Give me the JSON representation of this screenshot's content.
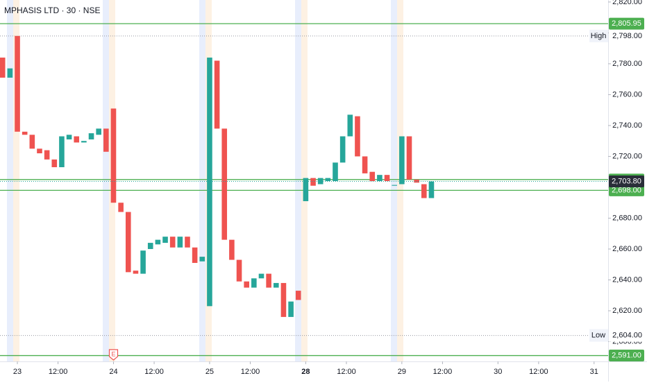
{
  "chart_data": {
    "type": "candlestick",
    "title": "MPHASIS LTD · 30 · NSE",
    "up_color": "#26a69a",
    "down_color": "#ef5350",
    "x": [
      -2,
      -1,
      0,
      1,
      2,
      3,
      4,
      5,
      6,
      7,
      8,
      9,
      10,
      11,
      12,
      13,
      14,
      15,
      16,
      17,
      18,
      19,
      20,
      21,
      22,
      23,
      24,
      25,
      26,
      27,
      28,
      29,
      30,
      31,
      32,
      33,
      34,
      35,
      36,
      37,
      38,
      39,
      40,
      41,
      42,
      43,
      44,
      45,
      46,
      47,
      48,
      49,
      50,
      51,
      52,
      53,
      54,
      55,
      56
    ],
    "open": [
      2784,
      2771,
      2798,
      2736,
      2734,
      2725,
      2724,
      2718,
      2713,
      2731,
      2733,
      2729,
      2731,
      2734,
      2738,
      2751,
      2690,
      2684,
      2646,
      2644,
      2660,
      2663,
      2664,
      2668,
      2661,
      2668,
      2661,
      2652,
      2623,
      2782,
      2738,
      2666,
      2653,
      2639,
      2635,
      2641,
      2644,
      2635,
      2638,
      2616,
      2633,
      2691,
      2706,
      2702,
      2704,
      2704,
      2716,
      2733,
      2746,
      2720,
      2710,
      2704,
      2708,
      2701,
      2702,
      2733,
      2705,
      2702,
      2693
    ],
    "high": {
      "name": "High",
      "value": 2798,
      "label": "2,798.00"
    },
    "low": {
      "name": "Low",
      "value": 2604,
      "label": "2,604.00"
    },
    "close": [
      2771,
      2777,
      2736,
      2734,
      2725,
      2722,
      2718,
      2713,
      2733,
      2734,
      2729,
      2730,
      2735,
      2738,
      2723,
      2690,
      2684,
      2645,
      2644,
      2659,
      2664,
      2666,
      2668,
      2661,
      2668,
      2661,
      2651,
      2655,
      2784,
      2738,
      2666,
      2653,
      2639,
      2635,
      2641,
      2644,
      2635,
      2638,
      2616,
      2626,
      2627,
      2706,
      2701,
      2706,
      2706,
      2716,
      2733,
      2747,
      2720,
      2709,
      2704,
      2708,
      2704,
      2701.5,
      2733,
      2705,
      2703,
      2693,
      2703.8
    ],
    "xlim": [
      -2.35,
      79.9
    ],
    "xticks": [
      {
        "value": 0,
        "label": "23"
      },
      {
        "value": 5.5,
        "label": "12:00"
      },
      {
        "value": 13,
        "label": "24"
      },
      {
        "value": 18.5,
        "label": "12:00"
      },
      {
        "value": 26,
        "label": "25"
      },
      {
        "value": 31.5,
        "label": "12:00"
      },
      {
        "value": 39,
        "label": "28"
      },
      {
        "value": 44.5,
        "label": "12:00"
      },
      {
        "value": 52,
        "label": "29"
      },
      {
        "value": 57.5,
        "label": "12:00"
      },
      {
        "value": 65,
        "label": "30"
      },
      {
        "value": 70.5,
        "label": "12:00"
      },
      {
        "value": 78,
        "label": "31"
      }
    ],
    "ylim": [
      2587.2,
      2821.3
    ],
    "yticks": [
      {
        "value": 2600,
        "label": "2,600.00"
      },
      {
        "value": 2620,
        "label": "2,620.00"
      },
      {
        "value": 2640,
        "label": "2,640.00"
      },
      {
        "value": 2660,
        "label": "2,660.00"
      },
      {
        "value": 2680,
        "label": "2,680.00"
      },
      {
        "value": 2700,
        "label": "2,700.00"
      },
      {
        "value": 2720,
        "label": "2,720.00"
      },
      {
        "value": 2740,
        "label": "2,740.00"
      },
      {
        "value": 2760,
        "label": "2,760.00"
      },
      {
        "value": 2780,
        "label": "2,780.00"
      },
      {
        "value": 2800,
        "label": "2,800.00"
      },
      {
        "value": 2820,
        "label": "2,820.00"
      }
    ],
    "levels": [
      {
        "value": 2805.95,
        "label": "2,805.95"
      },
      {
        "value": 2705,
        "label": "2,705.00"
      },
      {
        "value": 2698,
        "label": "2,698.00"
      },
      {
        "value": 2591,
        "label": "2,591.00"
      }
    ],
    "level_color": "#4caf50",
    "last": {
      "value": 2703.8,
      "label": "2,703.80"
    },
    "event": {
      "x": 13,
      "label": "E"
    }
  }
}
